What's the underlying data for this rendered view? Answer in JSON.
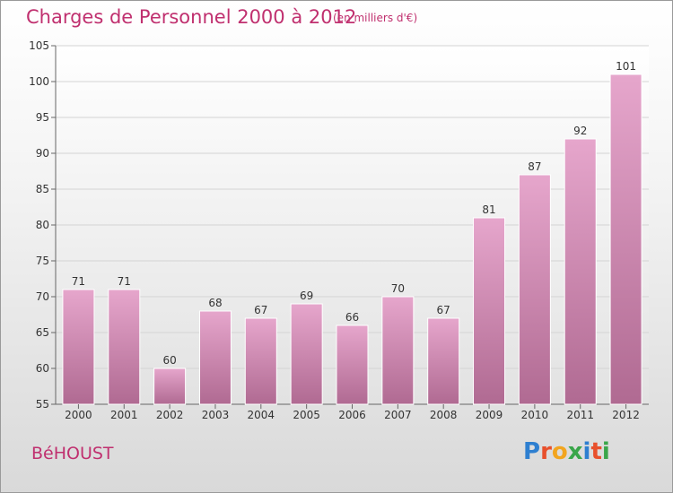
{
  "chart_data": {
    "type": "bar",
    "title": "Charges de Personnel 2000 à 2012",
    "subtitle": "(en milliers d'€)",
    "categories": [
      "2000",
      "2001",
      "2002",
      "2003",
      "2004",
      "2005",
      "2006",
      "2007",
      "2008",
      "2009",
      "2010",
      "2011",
      "2012"
    ],
    "values": [
      71,
      71,
      60,
      68,
      67,
      69,
      66,
      70,
      67,
      81,
      87,
      92,
      101
    ],
    "ylim": [
      55,
      105
    ],
    "yticks": [
      55,
      60,
      65,
      70,
      75,
      80,
      85,
      90,
      95,
      100,
      105
    ],
    "grid": true,
    "bar_color_top": "#e6a6cc",
    "bar_color_bottom": "#b06a92"
  },
  "footer": {
    "town": "BéHOUST",
    "brand_letters": [
      "P",
      "r",
      "o",
      "x",
      "i",
      "t",
      "i"
    ],
    "brand_colors": [
      "#2e7fd0",
      "#e8502c",
      "#f2a51f",
      "#3aa64a",
      "#2e7fd0",
      "#e8502c",
      "#3aa64a"
    ]
  }
}
